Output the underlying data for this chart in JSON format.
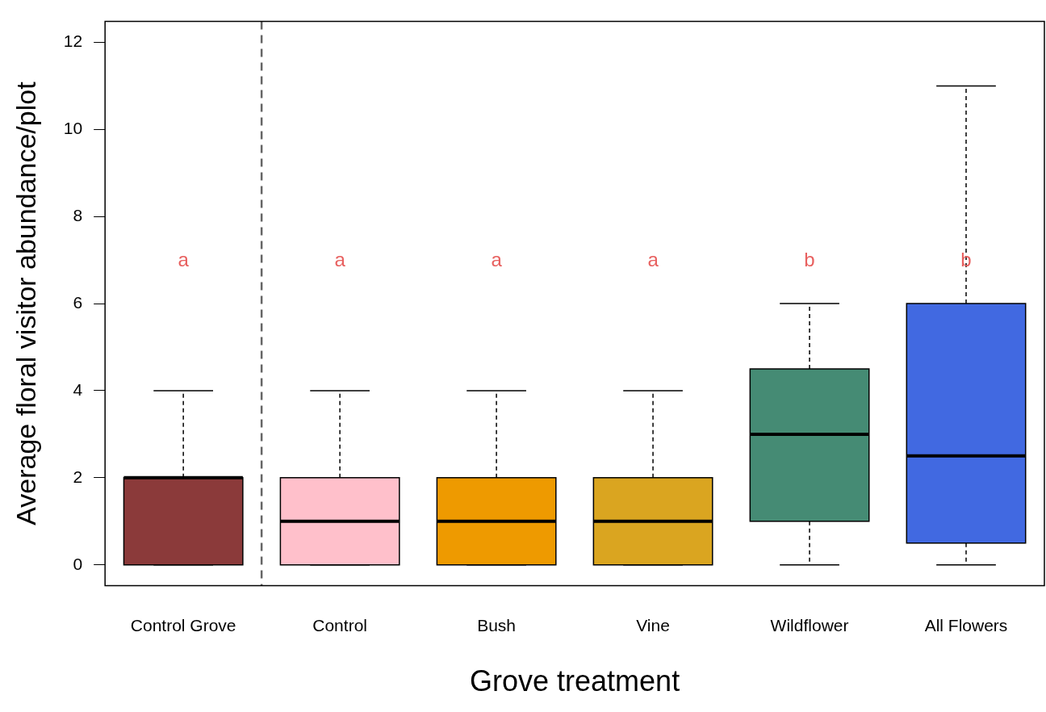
{
  "chart_data": {
    "type": "box",
    "xlabel": "Grove treatment",
    "ylabel": "Average floral visitor abundance/plot",
    "categories": [
      "Control Grove",
      "Control",
      "Bush",
      "Vine",
      "Wildflower",
      "All Flowers"
    ],
    "colors": [
      "#8b3a3a",
      "#ffc0cb",
      "#ee9a00",
      "#daa520",
      "#458b74",
      "#4169e1"
    ],
    "boxes": [
      {
        "low": 0,
        "q1": 0,
        "median": 2,
        "q3": 2,
        "high": 4
      },
      {
        "low": 0,
        "q1": 0,
        "median": 1,
        "q3": 2,
        "high": 4
      },
      {
        "low": 0,
        "q1": 0,
        "median": 1,
        "q3": 2,
        "high": 4
      },
      {
        "low": 0,
        "q1": 0,
        "median": 1,
        "q3": 2,
        "high": 4
      },
      {
        "low": 0,
        "q1": 1,
        "median": 3,
        "q3": 4.5,
        "high": 6
      },
      {
        "low": 0,
        "q1": 0.5,
        "median": 2.5,
        "q3": 6,
        "high": 11
      }
    ],
    "ylim": [
      -0.48,
      12.48
    ],
    "yticks": [
      0,
      2,
      4,
      6,
      8,
      10,
      12
    ],
    "grid": false,
    "legend": false,
    "annotations": [
      "a",
      "a",
      "a",
      "a",
      "b",
      "b"
    ]
  }
}
